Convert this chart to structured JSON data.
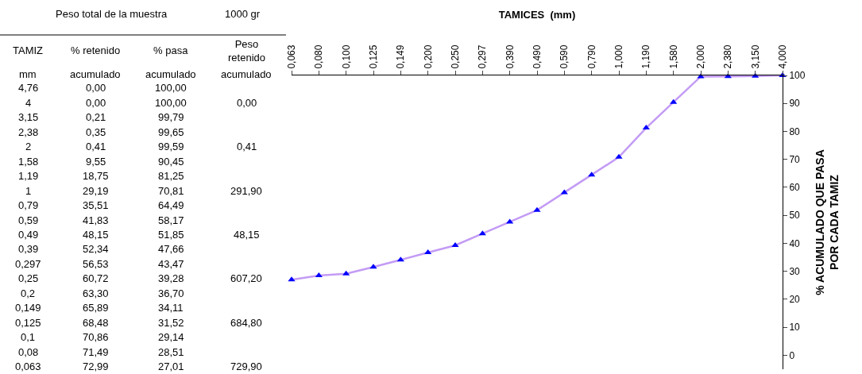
{
  "chart_data": [
    {
      "type": "other",
      "title": "Peso total de la muestra",
      "subtitle": "1000 gr",
      "annotations": [
        "TAMIZ",
        "% retenido",
        "% pasa",
        "Peso\nretenido",
        "mm",
        "acumulado",
        "acumulado",
        "acumulado",
        "4,76",
        "4",
        "3,15",
        "2,38",
        "2",
        "1,58",
        "1,19",
        "1",
        "0,79",
        "0,59",
        "0,49",
        "0,39",
        "0,297",
        "0,25",
        "0,2",
        "0,149",
        "0,125",
        "0,1",
        "0,08",
        "0,063",
        "0,00",
        "0,00",
        "0,21",
        "0,35",
        "0,41",
        "9,55",
        "18,75",
        "29,19",
        "35,51",
        "41,83",
        "48,15",
        "52,34",
        "56,53",
        "60,72",
        "63,30",
        "65,89",
        "68,48",
        "70,86",
        "71,49",
        "72,99",
        "100,00",
        "100,00",
        "99,79",
        "99,65",
        "99,59",
        "90,45",
        "81,25",
        "70,81",
        "64,49",
        "58,17",
        "51,85",
        "47,66",
        "43,47",
        "39,28",
        "36,70",
        "34,11",
        "31,52",
        "29,14",
        "28,51",
        "27,01",
        "0,00",
        "0,41",
        "291,90",
        "48,15",
        "607,20",
        "684,80",
        "729,90"
      ]
    },
    {
      "type": "line",
      "title": "TAMICES  (mm)",
      "ylabel": "% ACUMULADO QUE PASA\nPOR CADA TAMIZ",
      "categories": [
        "0,063",
        "0,080",
        "0,100",
        "0,125",
        "0,149",
        "0,200",
        "0,250",
        "0,297",
        "0,390",
        "0,490",
        "0,590",
        "0,790",
        "1,000",
        "1,190",
        "1,580",
        "2,000",
        "2,380",
        "3,150",
        "4,000"
      ],
      "series": [
        {
          "color": "#c39bf5",
          "colors": [
            "#0000ff",
            "#0000ff",
            "#0000ff",
            "#0000ff",
            "#0000ff",
            "#0000ff",
            "#0000ff",
            "#0000ff",
            "#0000ff",
            "#0000ff",
            "#0000ff",
            "#0000ff",
            "#0000ff",
            "#0000ff",
            "#0000ff",
            "#0000ff",
            "#0000ff",
            "#0000ff",
            "#0000ff"
          ],
          "values": [
            27.01,
            28.51,
            29.14,
            31.52,
            34.11,
            36.7,
            39.28,
            43.47,
            47.66,
            51.85,
            58.17,
            64.49,
            70.81,
            81.25,
            90.45,
            99.59,
            99.65,
            99.79,
            100.0
          ]
        }
      ],
      "ylim": [
        -5,
        100
      ],
      "yticks": [
        0,
        10,
        20,
        30,
        40,
        50,
        60,
        70,
        80,
        90,
        100
      ],
      "marker": "triangle",
      "line_style": "solid"
    }
  ]
}
